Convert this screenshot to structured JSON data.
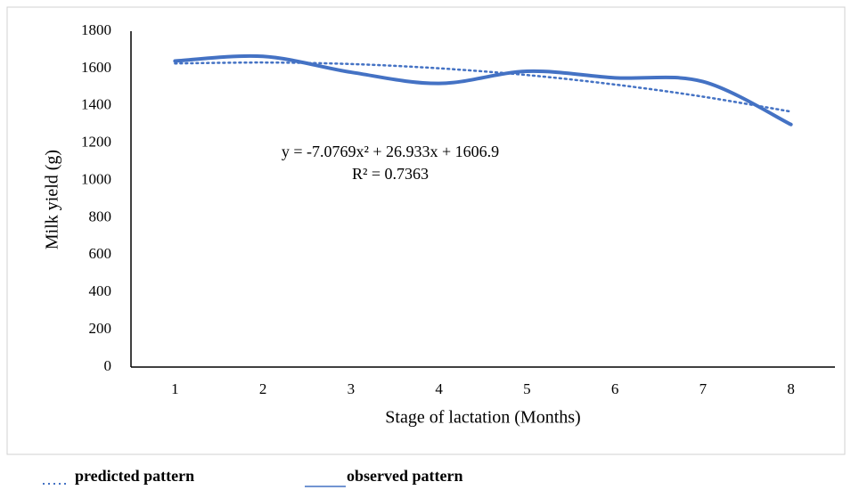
{
  "chart_data": {
    "type": "line",
    "x_label": "Stage of lactation (Months)",
    "y_label": "Milk yield (g)",
    "categories": [
      "1",
      "2",
      "3",
      "4",
      "5",
      "6",
      "7",
      "8"
    ],
    "series": [
      {
        "name": "predicted pattern",
        "color": "#4472c4",
        "style": "dotted",
        "values": [
          1627,
          1632,
          1624,
          1601,
          1565,
          1514,
          1449,
          1369
        ]
      },
      {
        "name": "observed pattern",
        "color": "#4472c4",
        "style": "solid",
        "smooth": true,
        "values": [
          1640,
          1665,
          1580,
          1520,
          1585,
          1550,
          1530,
          1300
        ]
      }
    ],
    "annotations": [
      "y = -7.0769x² + 26.933x + 1606.9",
      "R² = 0.7363"
    ],
    "ylim": [
      0,
      1800
    ],
    "yticks": [
      0,
      200,
      400,
      600,
      800,
      1000,
      1200,
      1400,
      1600,
      1800
    ],
    "grid": false
  }
}
